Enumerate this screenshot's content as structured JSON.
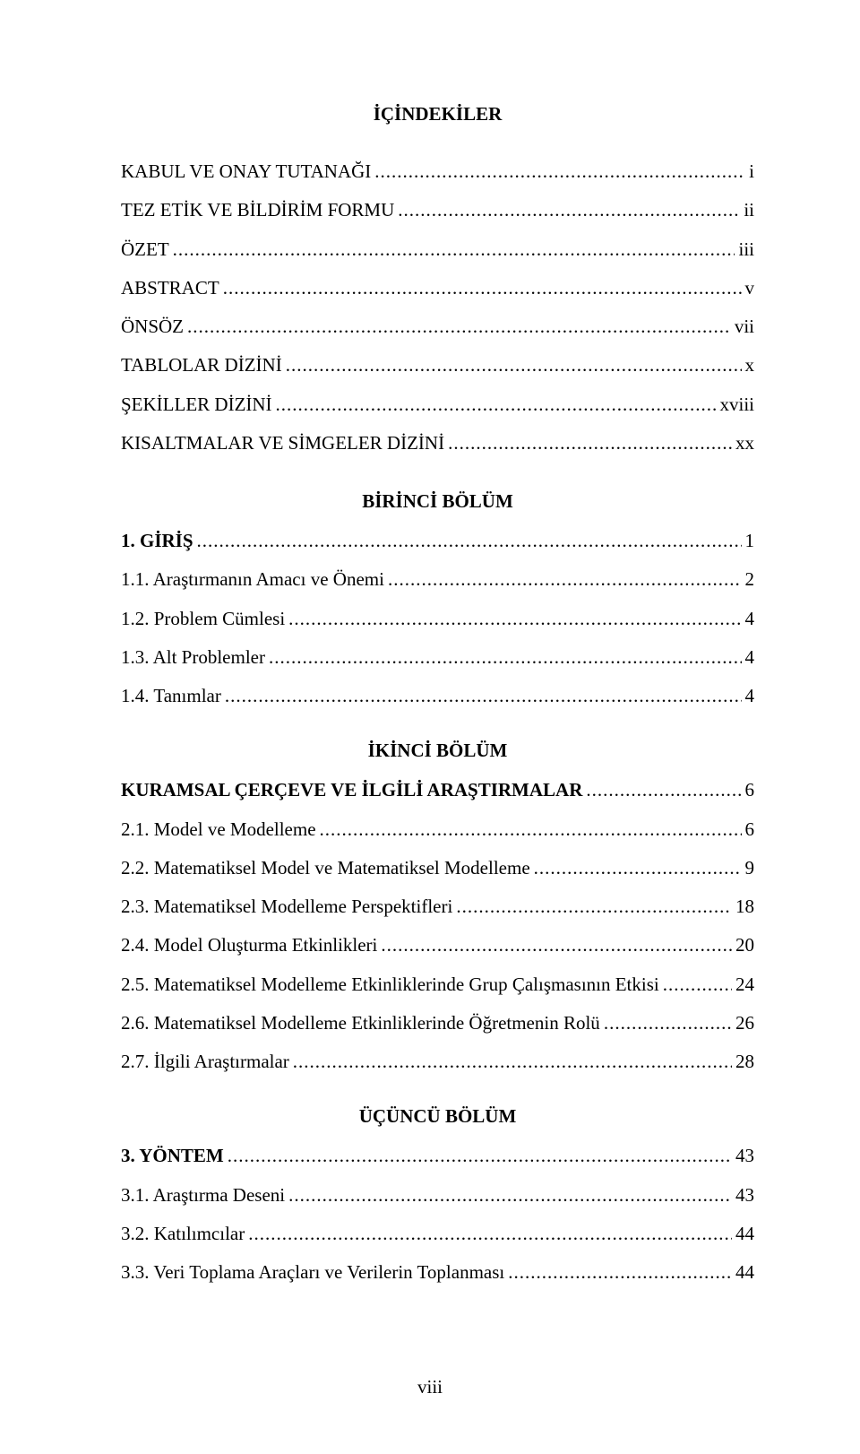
{
  "main_title": "İÇİNDEKİLER",
  "leader": "..............................................................................................................................................................................................",
  "front": [
    {
      "label": "KABUL VE ONAY TUTANAĞI",
      "page": "i"
    },
    {
      "label": "TEZ ETİK VE BİLDİRİM FORMU",
      "page": "ii"
    },
    {
      "label": "ÖZET",
      "page": "iii"
    },
    {
      "label": "ABSTRACT",
      "page": "v"
    },
    {
      "label": "ÖNSÖZ",
      "page": "vii"
    },
    {
      "label": "TABLOLAR DİZİNİ",
      "page": "x"
    },
    {
      "label": "ŞEKİLLER DİZİNİ",
      "page": "xviii"
    },
    {
      "label": "KISALTMALAR VE SİMGELER DİZİNİ",
      "page": "xx"
    }
  ],
  "sections": [
    {
      "heading": "BİRİNCİ BÖLÜM",
      "items": [
        {
          "label": "1. GİRİŞ",
          "page": "1",
          "bold": true
        },
        {
          "label": "1.1. Araştırmanın Amacı ve Önemi",
          "page": "2"
        },
        {
          "label": "1.2. Problem Cümlesi",
          "page": "4"
        },
        {
          "label": "1.3. Alt Problemler",
          "page": "4"
        },
        {
          "label": "1.4. Tanımlar",
          "page": "4"
        }
      ]
    },
    {
      "heading": "İKİNCİ BÖLÜM",
      "items": [
        {
          "label": "KURAMSAL ÇERÇEVE VE İLGİLİ ARAŞTIRMALAR",
          "page": "6",
          "bold": true
        },
        {
          "label": "2.1. Model ve Modelleme",
          "page": "6"
        },
        {
          "label": "2.2. Matematiksel Model ve Matematiksel Modelleme",
          "page": "9"
        },
        {
          "label": "2.3. Matematiksel Modelleme Perspektifleri",
          "page": "18"
        },
        {
          "label": "2.4. Model Oluşturma Etkinlikleri",
          "page": "20"
        },
        {
          "label": "2.5. Matematiksel Modelleme Etkinliklerinde Grup Çalışmasının Etkisi",
          "page": "24"
        },
        {
          "label": "2.6. Matematiksel Modelleme Etkinliklerinde Öğretmenin Rolü",
          "page": "26"
        },
        {
          "label": "2.7. İlgili Araştırmalar",
          "page": "28"
        }
      ]
    },
    {
      "heading": "ÜÇÜNCÜ BÖLÜM",
      "items": [
        {
          "label": "3. YÖNTEM",
          "page": "43",
          "bold": true
        },
        {
          "label": "3.1. Araştırma Deseni",
          "page": "43"
        },
        {
          "label": "3.2. Katılımcılar",
          "page": "44"
        },
        {
          "label": "3.3. Veri Toplama Araçları ve Verilerin Toplanması",
          "page": "44"
        }
      ]
    }
  ],
  "footer_page": "viii"
}
